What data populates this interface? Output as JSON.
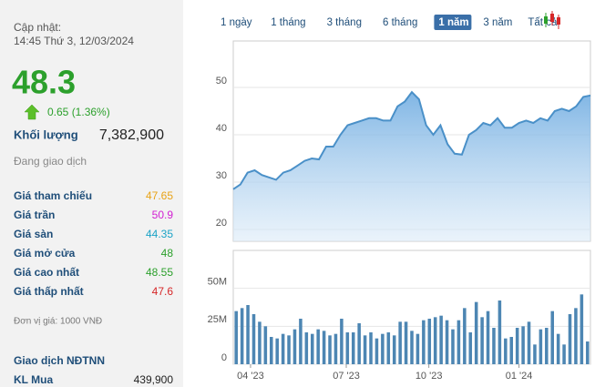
{
  "panel": {
    "updated_label": "Cập nhật:",
    "updated_time": "14:45 Thứ 3, 12/03/2024",
    "price": "48.3",
    "change": "0.65 (1.36%)",
    "volume_label": "Khối lượng",
    "volume": "7,382,900",
    "status": "Đang giao dịch",
    "rows": [
      {
        "label": "Giá tham chiếu",
        "value": "47.65",
        "color": "#e8a317"
      },
      {
        "label": "Giá trần",
        "value": "50.9",
        "color": "#d21fd2"
      },
      {
        "label": "Giá sàn",
        "value": "44.35",
        "color": "#1ba3c6"
      },
      {
        "label": "Giá mở cửa",
        "value": "48",
        "color": "#2ca02c"
      },
      {
        "label": "Giá cao nhất",
        "value": "48.55",
        "color": "#2ca02c"
      },
      {
        "label": "Giá thấp nhất",
        "value": "47.6",
        "color": "#d62728"
      }
    ],
    "unit_note": "Đơn vị giá: 1000 VNĐ",
    "foreign_title": "Giao dịch NĐTNN",
    "foreign_buy_label": "KL Mua",
    "foreign_buy": "439,900"
  },
  "tabs": [
    "1 ngày",
    "1 tháng",
    "3 tháng",
    "6 tháng",
    "1 năm",
    "3 năm",
    "Tất cả"
  ],
  "active_tab": 4,
  "chart_data": [
    {
      "type": "area",
      "color": "#4a90c8",
      "x": [
        0,
        1,
        2,
        3,
        4,
        5,
        6,
        7,
        8,
        9,
        10,
        11,
        12,
        13,
        14,
        15,
        16,
        17,
        18,
        19,
        20,
        21,
        22,
        23,
        24,
        25,
        26,
        27,
        28,
        29,
        30,
        31,
        32,
        33,
        34,
        35,
        36,
        37,
        38,
        39,
        40,
        41,
        42,
        43,
        44,
        45,
        46,
        47,
        48,
        49,
        50
      ],
      "values": [
        28.5,
        29.5,
        32,
        32.5,
        31.5,
        31,
        30.5,
        32,
        32.5,
        33.5,
        34.5,
        35,
        34.8,
        37.5,
        37.5,
        40,
        42,
        42.5,
        43,
        43.5,
        43.5,
        43,
        43,
        46,
        47,
        49,
        47.5,
        42,
        40,
        42,
        38,
        36,
        35.8,
        40,
        41,
        42.5,
        42,
        43.5,
        41.5,
        41.5,
        42.5,
        43,
        42.5,
        43.5,
        43,
        45,
        45.5,
        45,
        46,
        48,
        48.3
      ],
      "xlim": [
        0,
        50
      ],
      "ylim": [
        17.5,
        59.8
      ],
      "yticks": [
        20,
        30,
        40,
        50
      ],
      "grid": true
    },
    {
      "type": "bar",
      "color": "#4d86b3",
      "x": [
        0,
        1,
        2,
        3,
        4,
        5,
        6,
        7,
        8,
        9,
        10,
        11,
        12,
        13,
        14,
        15,
        16,
        17,
        18,
        19,
        20,
        21,
        22,
        23,
        24,
        25,
        26,
        27,
        28,
        29,
        30,
        31,
        32,
        33,
        34,
        35,
        36,
        37,
        38,
        39,
        40,
        41,
        42,
        43,
        44,
        45,
        46,
        47,
        48,
        49,
        50,
        51,
        52,
        53,
        54,
        55,
        56,
        57,
        58,
        59,
        60
      ],
      "values": [
        35000000,
        37000000,
        39000000,
        33000000,
        28000000,
        25000000,
        18000000,
        17000000,
        20000000,
        19000000,
        23000000,
        30000000,
        21000000,
        20000000,
        23000000,
        22000000,
        19000000,
        20000000,
        30000000,
        21000000,
        21000000,
        27000000,
        19000000,
        21000000,
        17000000,
        20000000,
        21000000,
        19000000,
        28000000,
        28000000,
        22000000,
        20000000,
        29000000,
        30000000,
        31000000,
        32000000,
        29000000,
        23000000,
        29000000,
        37000000,
        21000000,
        41000000,
        31000000,
        35000000,
        24000000,
        42000000,
        17000000,
        18000000,
        24000000,
        25000000,
        28000000,
        13000000,
        23000000,
        24000000,
        35000000,
        20000000,
        13000000,
        33000000,
        37000000,
        46000000,
        15000000
      ],
      "xlim": [
        -0.5,
        60.5
      ],
      "ylim": [
        0,
        75000000
      ],
      "yticks": [
        0,
        {
          "value": 25000000,
          "label": "25M"
        },
        {
          "value": 50000000,
          "label": "50M"
        }
      ],
      "xticks": [
        {
          "value": 2.45,
          "label": "04 '23"
        },
        {
          "value": 18.8,
          "label": "07 '23"
        },
        {
          "value": 32.9,
          "label": "10 '23"
        },
        {
          "value": 48.3,
          "label": "01 '24"
        }
      ],
      "grid": true
    }
  ]
}
